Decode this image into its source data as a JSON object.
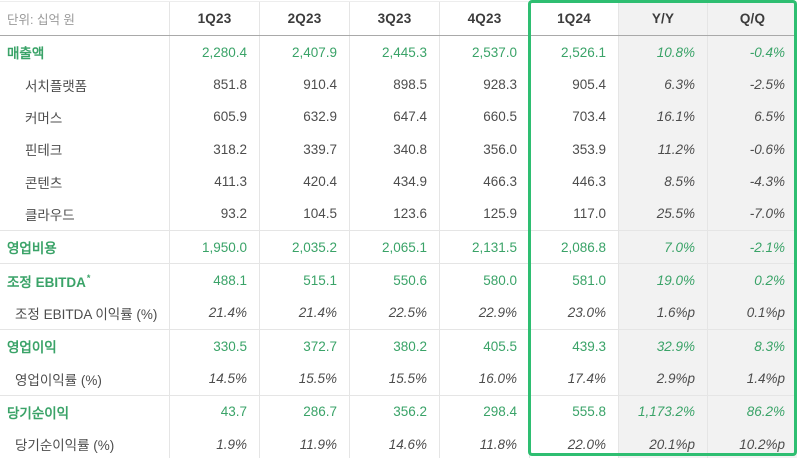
{
  "header": {
    "unit_label": "단위: 십억 원"
  },
  "chart_data": {
    "type": "table",
    "columns": [
      "1Q23",
      "2Q23",
      "3Q23",
      "4Q23",
      "1Q24",
      "Y/Y",
      "Q/Q"
    ],
    "highlighted_columns": [
      "1Q24",
      "Y/Y",
      "Q/Q"
    ],
    "shaded_columns": [
      "Y/Y",
      "Q/Q"
    ],
    "rows": [
      {
        "label": "매출액",
        "style": "primary",
        "group_start": false,
        "values": [
          "2,280.4",
          "2,407.9",
          "2,445.3",
          "2,537.0",
          "2,526.1",
          "10.8%",
          "-0.4%"
        ]
      },
      {
        "label": "서치플랫폼",
        "style": "sub",
        "group_start": false,
        "values": [
          "851.8",
          "910.4",
          "898.5",
          "928.3",
          "905.4",
          "6.3%",
          "-2.5%"
        ]
      },
      {
        "label": "커머스",
        "style": "sub",
        "group_start": false,
        "values": [
          "605.9",
          "632.9",
          "647.4",
          "660.5",
          "703.4",
          "16.1%",
          "6.5%"
        ]
      },
      {
        "label": "핀테크",
        "style": "sub",
        "group_start": false,
        "values": [
          "318.2",
          "339.7",
          "340.8",
          "356.0",
          "353.9",
          "11.2%",
          "-0.6%"
        ]
      },
      {
        "label": "콘텐츠",
        "style": "sub",
        "group_start": false,
        "values": [
          "411.3",
          "420.4",
          "434.9",
          "466.3",
          "446.3",
          "8.5%",
          "-4.3%"
        ]
      },
      {
        "label": "클라우드",
        "style": "sub",
        "group_start": false,
        "values": [
          "93.2",
          "104.5",
          "123.6",
          "125.9",
          "117.0",
          "25.5%",
          "-7.0%"
        ]
      },
      {
        "label": "영업비용",
        "style": "primary",
        "group_start": true,
        "values": [
          "1,950.0",
          "2,035.2",
          "2,065.1",
          "2,131.5",
          "2,086.8",
          "7.0%",
          "-2.1%"
        ]
      },
      {
        "label": "조정 EBITDA",
        "label_sup": "*",
        "style": "primary",
        "group_start": true,
        "values": [
          "488.1",
          "515.1",
          "550.6",
          "580.0",
          "581.0",
          "19.0%",
          "0.2%"
        ]
      },
      {
        "label": "조정 EBITDA 이익률 (%)",
        "style": "ratio",
        "group_start": false,
        "values": [
          "21.4%",
          "21.4%",
          "22.5%",
          "22.9%",
          "23.0%",
          "1.6%p",
          "0.1%p"
        ]
      },
      {
        "label": "영업이익",
        "style": "primary",
        "group_start": true,
        "values": [
          "330.5",
          "372.7",
          "380.2",
          "405.5",
          "439.3",
          "32.9%",
          "8.3%"
        ]
      },
      {
        "label": "영업이익률 (%)",
        "style": "ratio",
        "group_start": false,
        "values": [
          "14.5%",
          "15.5%",
          "15.5%",
          "16.0%",
          "17.4%",
          "2.9%p",
          "1.4%p"
        ]
      },
      {
        "label": "당기순이익",
        "style": "primary",
        "group_start": true,
        "values": [
          "43.7",
          "286.7",
          "356.2",
          "298.4",
          "555.8",
          "1,173.2%",
          "86.2%"
        ]
      },
      {
        "label": "당기순이익률 (%)",
        "style": "ratio",
        "group_start": false,
        "values": [
          "1.9%",
          "11.9%",
          "14.6%",
          "11.8%",
          "22.0%",
          "20.1%p",
          "10.2%p"
        ]
      }
    ]
  },
  "colors": {
    "accent_green": "#3aa368",
    "highlight_border": "#2ebe71",
    "shaded_column_bg": "#f2f2f2",
    "dark_text": "#4d4d4d",
    "muted_text": "#9a9a9a",
    "grid_line": "#e5e5e5"
  }
}
